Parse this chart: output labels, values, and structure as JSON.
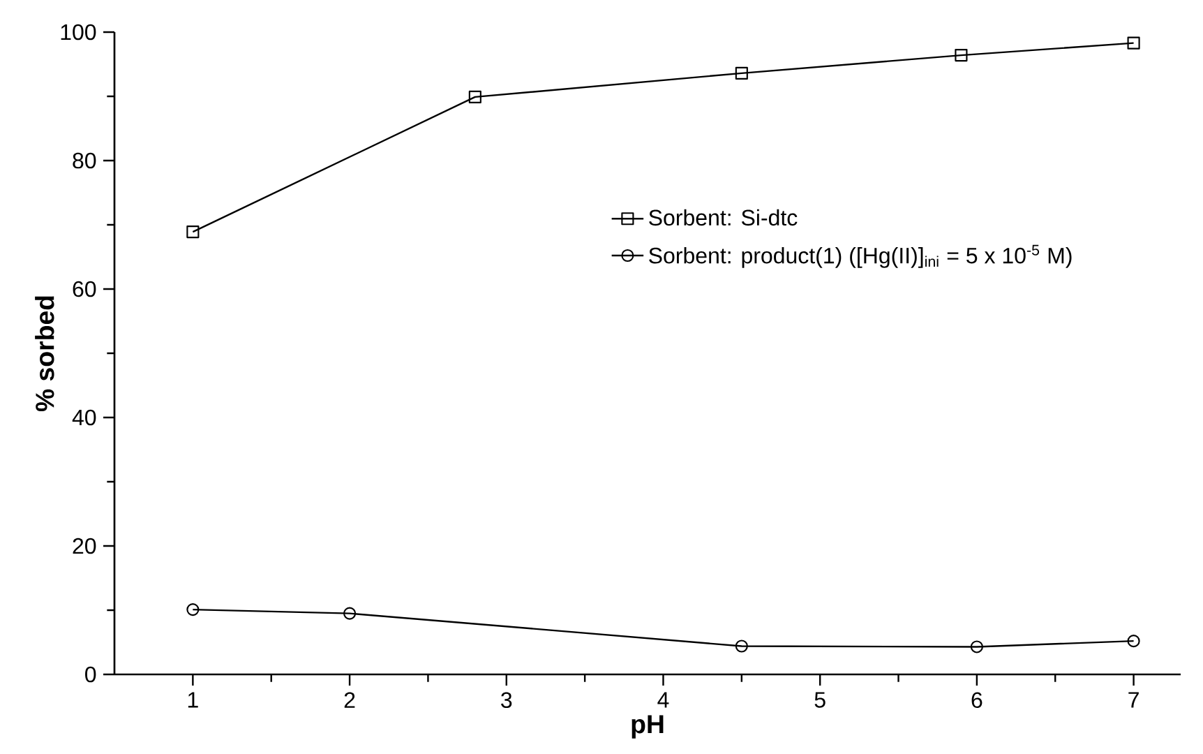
{
  "chart_data": {
    "type": "line",
    "xlabel": "pH",
    "ylabel": "% sorbed",
    "xlim": [
      0.5,
      7.3
    ],
    "ylim": [
      0,
      100
    ],
    "xticks": [
      1,
      2,
      3,
      4,
      5,
      6,
      7
    ],
    "yticks": [
      0,
      20,
      40,
      60,
      80,
      100
    ],
    "legend": "right",
    "line_style": "solid",
    "grid": false,
    "series": [
      {
        "name": "Sorbent: Si-dtc",
        "color": "#000000",
        "marker": "square",
        "x": [
          1,
          2.8,
          4.5,
          5.9,
          7
        ],
        "values": [
          68.9,
          89.9,
          93.6,
          96.4,
          98.3
        ]
      },
      {
        "name": "Sorbent: product(1) ([Hg(II)]$_{ini}$ = 5 x 10$^{-5}$ M)",
        "color": "#000000",
        "marker": "circle",
        "x": [
          1,
          2,
          4.5,
          6,
          7
        ],
        "values": [
          10.1,
          9.5,
          4.4,
          4.3,
          5.2
        ]
      }
    ]
  }
}
